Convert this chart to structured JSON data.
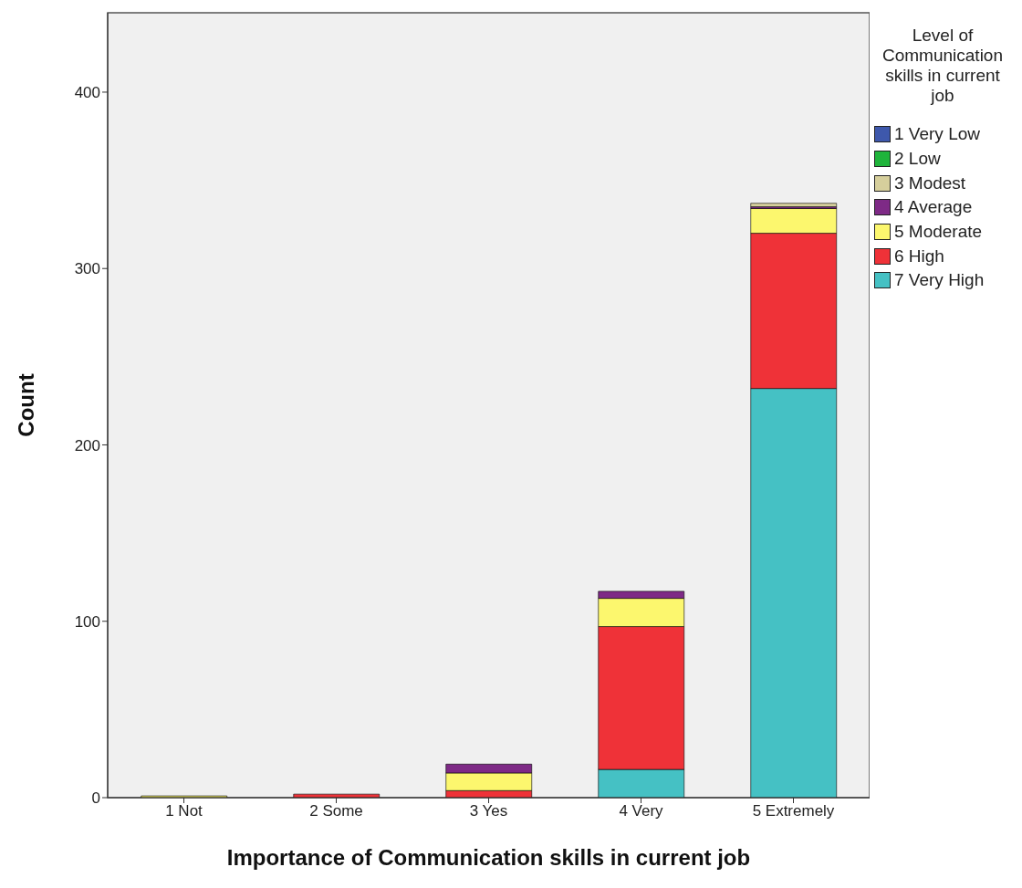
{
  "chart_data": {
    "type": "bar",
    "stacked": true,
    "xlabel": "Importance of Communication skills in current job",
    "ylabel": "Count",
    "legend_title": "Level of Communication skills in current job",
    "legend": "right",
    "grid": false,
    "categories": [
      "1 Not",
      "2 Some",
      "3 Yes",
      "4 Very",
      "5 Extremely"
    ],
    "ylim": [
      0,
      445
    ],
    "yticks": [
      0,
      100,
      200,
      300,
      400
    ],
    "series": [
      {
        "name": "7 Very High",
        "color": "#45c1c4",
        "values": [
          0,
          0,
          0,
          16,
          232
        ]
      },
      {
        "name": "6 High",
        "color": "#ef3238",
        "values": [
          0,
          2,
          4,
          81,
          88
        ]
      },
      {
        "name": "5 Moderate",
        "color": "#fcf76e",
        "values": [
          1,
          0,
          10,
          16,
          14
        ]
      },
      {
        "name": "4 Average",
        "color": "#7e2a86",
        "values": [
          0,
          0,
          5,
          4,
          1
        ]
      },
      {
        "name": "3 Modest",
        "color": "#d6cf9c",
        "values": [
          0,
          0,
          0,
          0,
          2
        ]
      },
      {
        "name": "2 Low",
        "color": "#1fb43b",
        "values": [
          0,
          0,
          0,
          0,
          0
        ]
      },
      {
        "name": "1 Very Low",
        "color": "#3e58ac",
        "values": [
          0,
          0,
          0,
          0,
          0
        ]
      }
    ]
  }
}
